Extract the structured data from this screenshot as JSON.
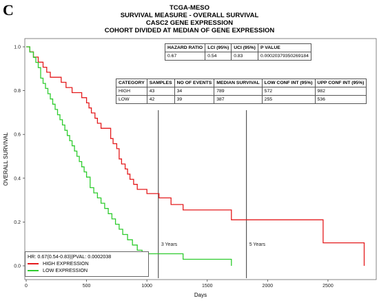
{
  "panel_letter": "C",
  "title_lines": [
    "TCGA-MESO",
    "SURVIVAL MEASURE -  OVERALL SURVIVAL",
    "CASC2  GENE EXPRESSION",
    "COHORT DIVIDED AT MEDIAN OF GENE EXPRESSION"
  ],
  "hr_table": {
    "headers": [
      "HAZARD RATIO",
      "LCI (95%)",
      "UCI (95%)",
      "P VALUE"
    ],
    "row": [
      "0.67",
      "0.54",
      "0.83",
      "0.00020379350269184"
    ]
  },
  "category_table": {
    "headers": [
      "CATEGORY",
      "SAMPLES",
      "NO OF EVENTS",
      "MEDIAN SURVIVAL",
      "LOW CONF INT (95%)",
      "UPP CONF INT (95%)"
    ],
    "rows": [
      [
        "HIGH",
        "43",
        "34",
        "789",
        "572",
        "982"
      ],
      [
        "LOW",
        "42",
        "39",
        "387",
        "255",
        "536"
      ]
    ]
  },
  "legend": {
    "hr_text": "HR: 0.67(0.54-0.83)|PVAL: 0.0002038",
    "items": [
      {
        "label": "HIGH EXPRESSION",
        "color": "#e41a1c"
      },
      {
        "label": "LOW EXPRESSION",
        "color": "#2ecc2e"
      }
    ]
  },
  "chart_data": {
    "type": "line",
    "title": "TCGA-MESO",
    "xlabel": "Days",
    "ylabel": "OVERALL SURVIVAL",
    "xlim": [
      0,
      2900
    ],
    "ylim": [
      0,
      1.0
    ],
    "xticks": [
      0,
      500,
      1000,
      1500,
      2000,
      2500
    ],
    "yticks": [
      0.0,
      0.2,
      0.4,
      0.6,
      0.8,
      1.0
    ],
    "grid": false,
    "legend_position": "bottom-left",
    "step": true,
    "series": [
      {
        "name": "HIGH EXPRESSION",
        "color": "#e41a1c",
        "x": [
          0,
          30,
          60,
          100,
          140,
          170,
          200,
          290,
          330,
          380,
          460,
          500,
          520,
          540,
          570,
          590,
          620,
          700,
          720,
          750,
          770,
          790,
          820,
          840,
          860,
          890,
          920,
          1000,
          1100,
          1150,
          1200,
          1300,
          1400,
          1600,
          1700,
          2460,
          2800,
          2800
        ],
        "y": [
          1.0,
          0.977,
          0.953,
          0.93,
          0.907,
          0.884,
          0.861,
          0.838,
          0.814,
          0.791,
          0.768,
          0.744,
          0.721,
          0.698,
          0.674,
          0.651,
          0.628,
          0.581,
          0.558,
          0.535,
          0.488,
          0.465,
          0.442,
          0.419,
          0.395,
          0.372,
          0.349,
          0.33,
          0.31,
          0.31,
          0.28,
          0.255,
          0.255,
          0.255,
          0.21,
          0.105,
          0.105,
          0.0
        ]
      },
      {
        "name": "LOW EXPRESSION",
        "color": "#2ecc2e",
        "x": [
          0,
          30,
          60,
          80,
          100,
          120,
          140,
          160,
          180,
          200,
          220,
          240,
          260,
          280,
          300,
          320,
          340,
          360,
          380,
          400,
          420,
          440,
          460,
          480,
          500,
          530,
          560,
          590,
          620,
          650,
          680,
          710,
          740,
          770,
          800,
          840,
          880,
          920,
          960,
          1100,
          1300,
          1700,
          1700
        ],
        "y": [
          1.0,
          0.976,
          0.952,
          0.929,
          0.905,
          0.857,
          0.833,
          0.81,
          0.786,
          0.762,
          0.738,
          0.714,
          0.69,
          0.667,
          0.643,
          0.619,
          0.595,
          0.571,
          0.548,
          0.524,
          0.5,
          0.476,
          0.452,
          0.429,
          0.405,
          0.357,
          0.333,
          0.31,
          0.286,
          0.262,
          0.238,
          0.214,
          0.19,
          0.167,
          0.143,
          0.119,
          0.095,
          0.071,
          0.055,
          0.055,
          0.03,
          0.03,
          0.0
        ]
      }
    ],
    "reference_lines": [
      {
        "x": 1095,
        "label": "3 Years"
      },
      {
        "x": 1825,
        "label": "5 Years"
      }
    ]
  }
}
